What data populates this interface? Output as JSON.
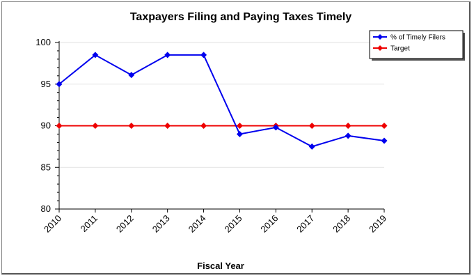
{
  "chart_data": {
    "type": "line",
    "title": "Taxpayers Filing and Paying Taxes Timely",
    "xlabel": "Fiscal Year",
    "ylabel": "",
    "categories": [
      "2010",
      "2011",
      "2012",
      "2013",
      "2014",
      "2015",
      "2016",
      "2017",
      "2018",
      "2019"
    ],
    "ylim": [
      80,
      100
    ],
    "yticks": [
      "80",
      "85",
      "90",
      "95",
      "100"
    ],
    "grid": true,
    "legend_position": "top-right",
    "series": [
      {
        "name": "% of Timely Filers",
        "color": "#0000ee",
        "values": [
          95.0,
          98.5,
          96.1,
          98.5,
          98.5,
          89.0,
          89.8,
          87.5,
          88.8,
          88.2
        ]
      },
      {
        "name": "Target",
        "color": "#ee0000",
        "values": [
          90,
          90,
          90,
          90,
          90,
          90,
          90,
          90,
          90,
          90
        ]
      }
    ]
  }
}
